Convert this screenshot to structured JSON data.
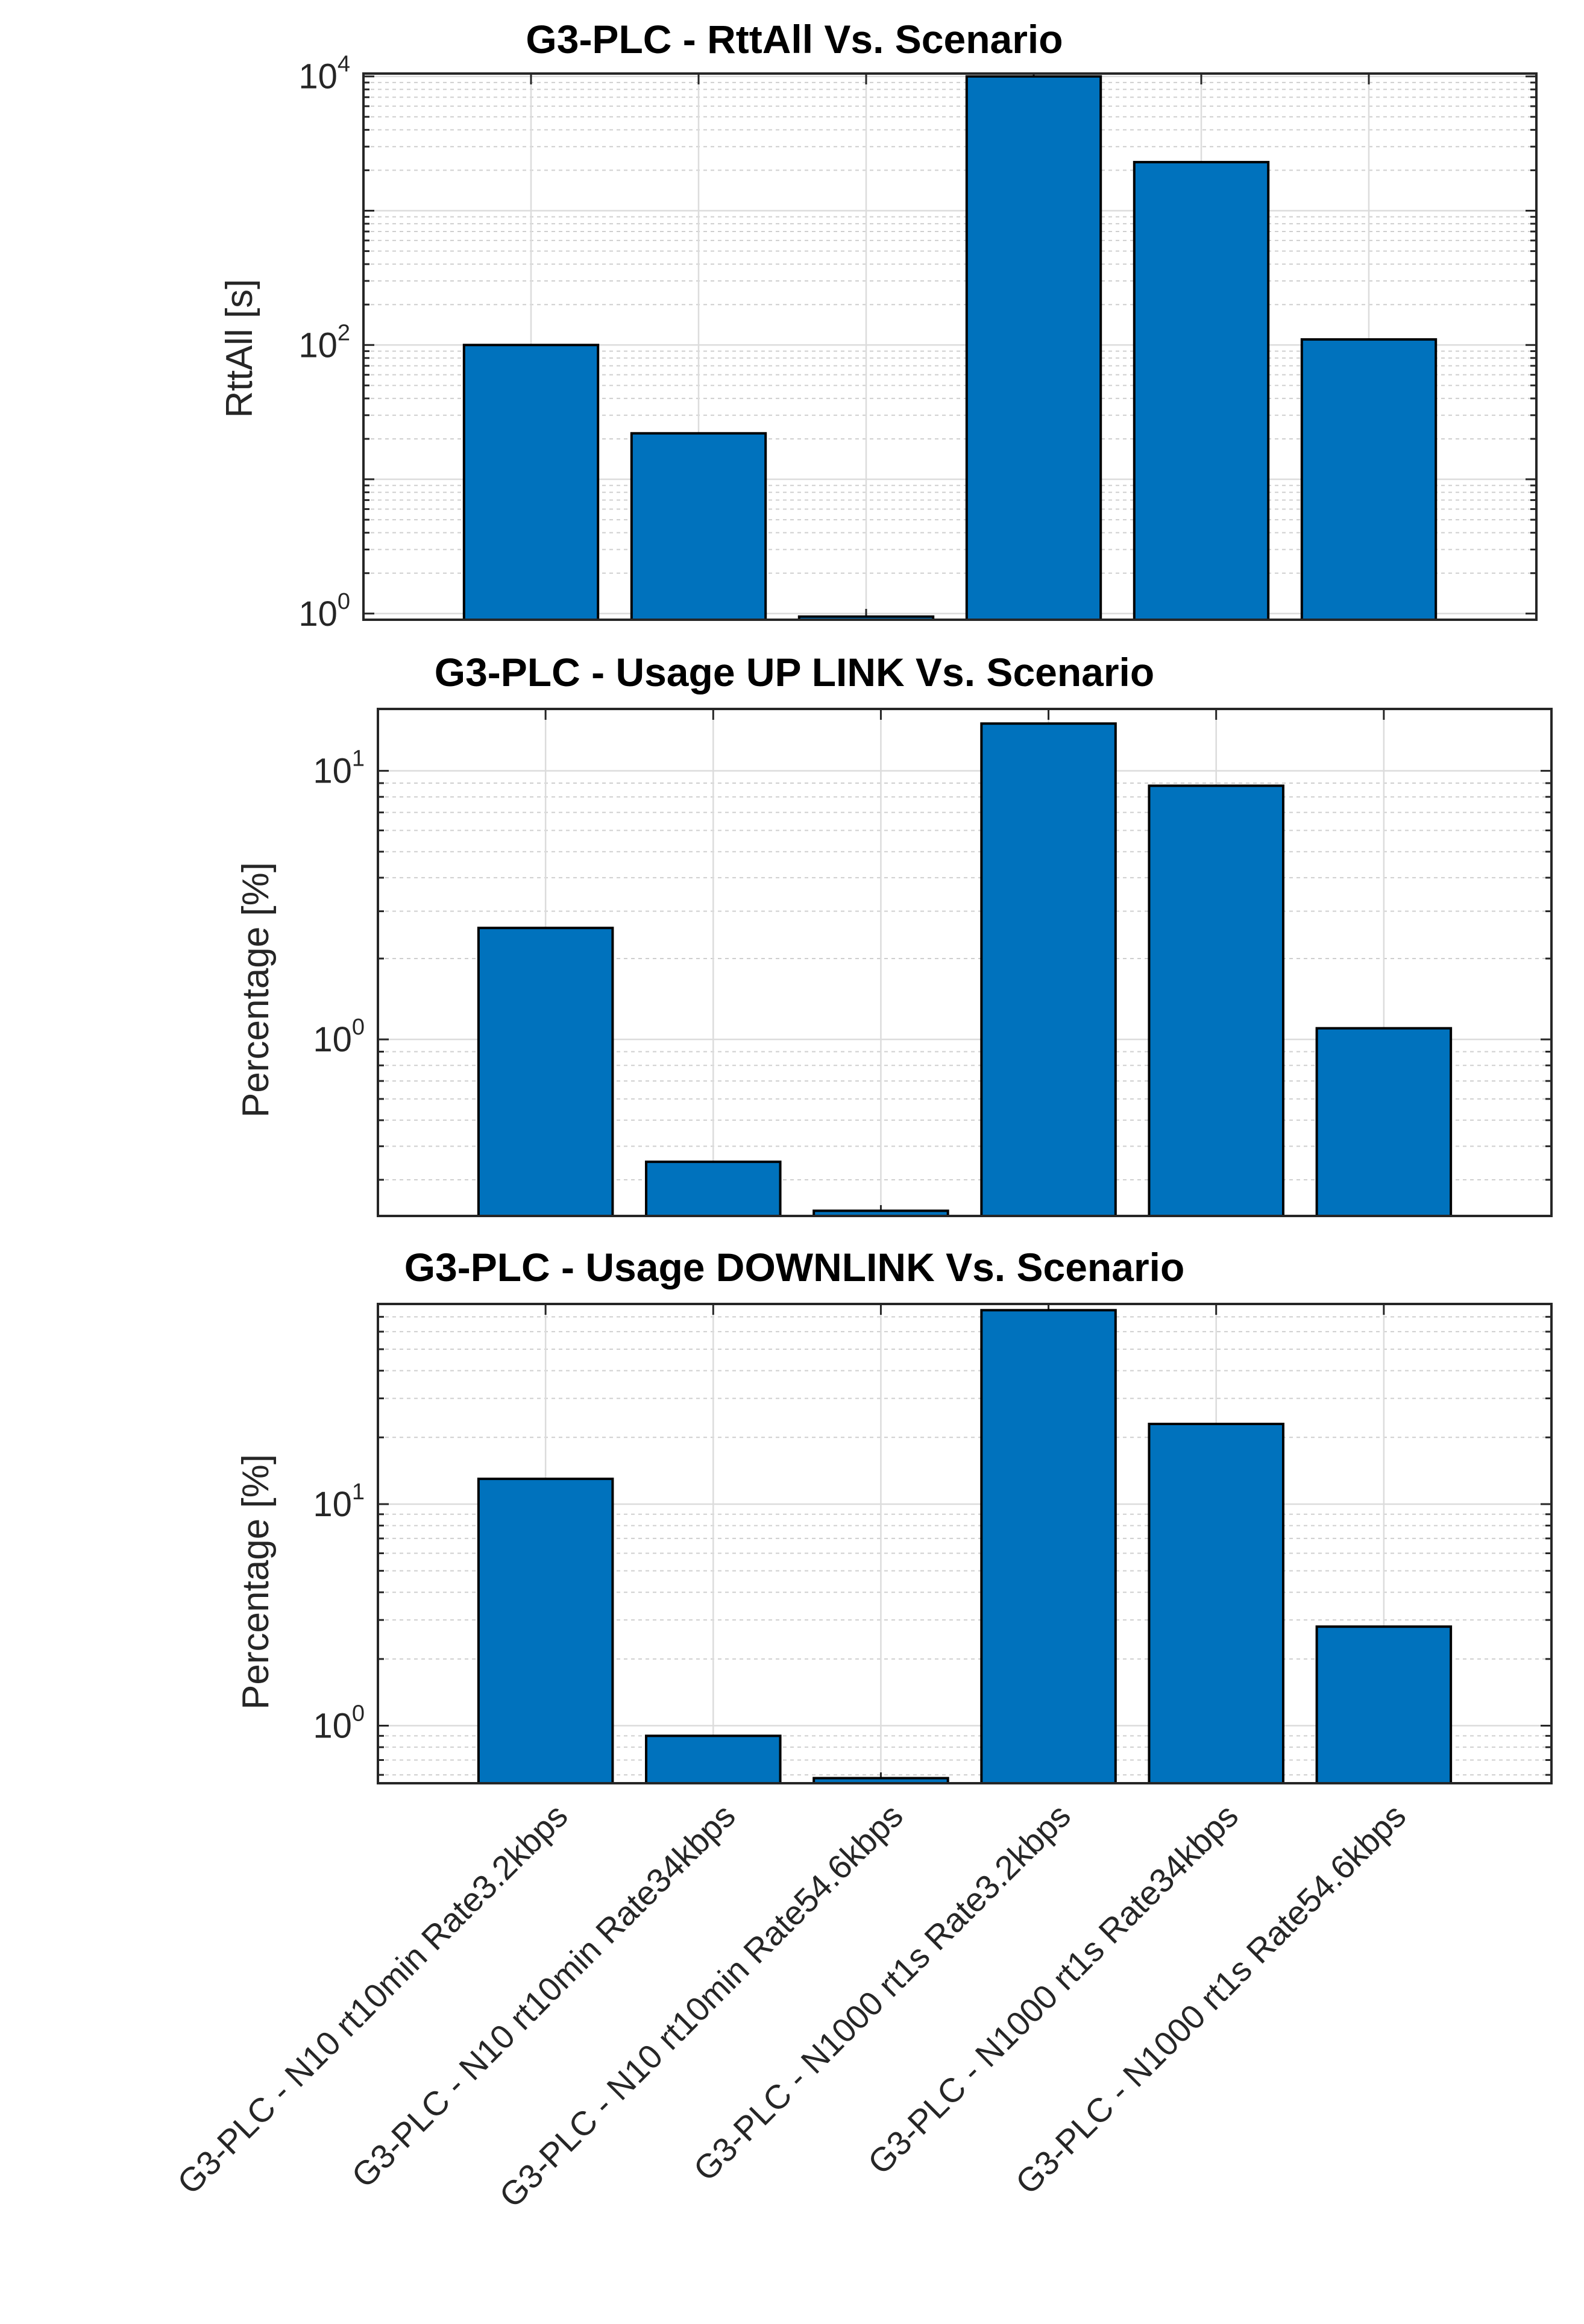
{
  "chart_data": [
    {
      "type": "bar",
      "title": "G3-PLC - RttAll Vs. Scenario",
      "xlabel": "",
      "ylabel": "RttAll [s]",
      "yscale": "log",
      "ylim": [
        0.9,
        10500
      ],
      "yticks": [
        {
          "value": 1,
          "base": "10",
          "exp": "0"
        },
        {
          "value": 100,
          "base": "10",
          "exp": "2"
        },
        {
          "value": 10000,
          "base": "10",
          "exp": "4"
        }
      ],
      "grid": true,
      "xticklabels_shown": false,
      "categories": [
        "G3-PLC -  N10 rt10min Rate3.2kbps",
        "G3-PLC - N10 rt10min Rate34kbps",
        "G3-PLC - N10 rt10min Rate54.6kbps",
        "G3-PLC - N1000 rt1s Rate3.2kbps",
        "G3-PLC - N1000 rt1s Rate34kbps",
        "G3-PLC - N1000 rt1s Rate54.6kbps"
      ],
      "values": [
        100,
        22,
        0.95,
        10000,
        2300,
        110
      ],
      "bar_color": "#0072BD"
    },
    {
      "type": "bar",
      "title": "G3-PLC - Usage UP LINK Vs. Scenario",
      "xlabel": "",
      "ylabel": "Percentage [%]",
      "yscale": "log",
      "ylim": [
        0.22,
        17
      ],
      "yticks": [
        {
          "value": 1,
          "base": "10",
          "exp": "0"
        },
        {
          "value": 10,
          "base": "10",
          "exp": "1"
        }
      ],
      "grid": true,
      "xticklabels_shown": false,
      "categories": [
        "G3-PLC -  N10 rt10min Rate3.2kbps",
        "G3-PLC - N10 rt10min Rate34kbps",
        "G3-PLC - N10 rt10min Rate54.6kbps",
        "G3-PLC - N1000 rt1s Rate3.2kbps",
        "G3-PLC - N1000 rt1s Rate34kbps",
        "G3-PLC - N1000 rt1s Rate54.6kbps"
      ],
      "values": [
        2.6,
        0.35,
        0.23,
        15,
        8.8,
        1.1
      ],
      "bar_color": "#0072BD"
    },
    {
      "type": "bar",
      "title": "G3-PLC - Usage DOWNLINK Vs. Scenario",
      "xlabel": "",
      "ylabel": "Percentage [%]",
      "yscale": "log",
      "ylim": [
        0.55,
        80
      ],
      "yticks": [
        {
          "value": 1,
          "base": "10",
          "exp": "0"
        },
        {
          "value": 10,
          "base": "10",
          "exp": "1"
        }
      ],
      "grid": true,
      "xticklabels_shown": true,
      "categories": [
        "G3-PLC -  N10 rt10min Rate3.2kbps",
        "G3-PLC - N10 rt10min Rate34kbps",
        "G3-PLC - N10 rt10min Rate54.6kbps",
        "G3-PLC - N1000 rt1s Rate3.2kbps",
        "G3-PLC - N1000 rt1s Rate34kbps",
        "G3-PLC - N1000 rt1s Rate54.6kbps"
      ],
      "values": [
        13,
        0.9,
        0.58,
        75,
        23,
        2.8
      ],
      "bar_color": "#0072BD"
    }
  ]
}
